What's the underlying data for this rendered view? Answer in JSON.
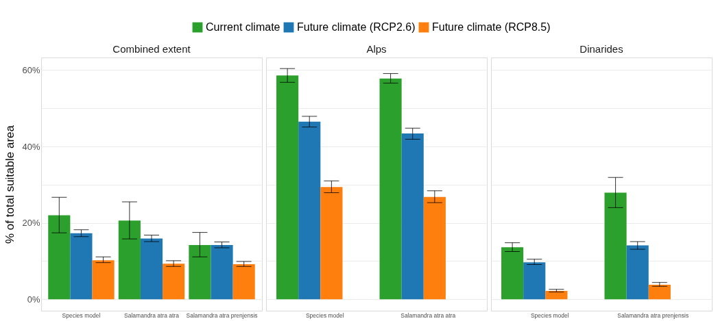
{
  "chart_data": [
    {
      "type": "bar",
      "title": "Combined extent",
      "ylabel": "% of total suitable area",
      "categories": [
        "Species model",
        "Salamandra atra atra",
        "Salamandra atra prenjensis"
      ],
      "series": [
        {
          "name": "Current climate",
          "color": "#2ca02c",
          "values": [
            22.0,
            20.6,
            14.2
          ],
          "errors": [
            [
              17.4,
              26.7
            ],
            [
              15.8,
              25.5
            ],
            [
              11.1,
              17.5
            ]
          ]
        },
        {
          "name": "Future climate (RCP2.6)",
          "color": "#1f77b4",
          "values": [
            17.3,
            15.9,
            14.2
          ],
          "errors": [
            [
              16.4,
              18.2
            ],
            [
              15.1,
              16.8
            ],
            [
              13.5,
              15.0
            ]
          ]
        },
        {
          "name": "Future climate (RCP8.5)",
          "color": "#ff7f0e",
          "values": [
            10.2,
            9.3,
            9.2
          ],
          "errors": [
            [
              9.6,
              11.1
            ],
            [
              8.6,
              10.1
            ],
            [
              8.6,
              9.9
            ]
          ]
        }
      ],
      "ylim": [
        -3,
        63.3
      ],
      "yticks": [
        {
          "value": 0,
          "label": "0%"
        },
        {
          "value": 10,
          "label": null
        },
        {
          "value": 20,
          "label": "20%"
        },
        {
          "value": 30,
          "label": null
        },
        {
          "value": 40,
          "label": "40%"
        },
        {
          "value": 50,
          "label": null
        },
        {
          "value": 60,
          "label": "60%"
        }
      ],
      "grid": "y",
      "legend": "top"
    },
    {
      "type": "bar",
      "title": "Alps",
      "categories": [
        "Species model",
        "Salamandra atra atra"
      ],
      "series": [
        {
          "name": "Current climate",
          "color": "#2ca02c",
          "values": [
            58.6,
            57.8
          ],
          "errors": [
            [
              56.8,
              60.4
            ],
            [
              56.6,
              59.1
            ]
          ]
        },
        {
          "name": "Future climate (RCP2.6)",
          "color": "#1f77b4",
          "values": [
            46.5,
            43.4
          ],
          "errors": [
            [
              45.1,
              47.9
            ],
            [
              41.9,
              44.8
            ]
          ]
        },
        {
          "name": "Future climate (RCP8.5)",
          "color": "#ff7f0e",
          "values": [
            29.4,
            26.8
          ],
          "errors": [
            [
              27.9,
              31.0
            ],
            [
              25.3,
              28.4
            ]
          ]
        }
      ],
      "ylim": [
        -3,
        63.3
      ],
      "yticks": [
        0,
        10,
        20,
        30,
        40,
        50,
        60
      ],
      "grid": "y",
      "tick_labels": "x"
    },
    {
      "type": "bar",
      "title": "Dinarides",
      "categories": [
        "Species model",
        "Salamandra atra prenjensis"
      ],
      "series": [
        {
          "name": "Current climate",
          "color": "#2ca02c",
          "values": [
            13.6,
            27.9
          ],
          "errors": [
            [
              12.5,
              14.8
            ],
            [
              24.0,
              31.9
            ]
          ]
        },
        {
          "name": "Future climate (RCP2.6)",
          "color": "#1f77b4",
          "values": [
            9.7,
            14.1
          ],
          "errors": [
            [
              9.1,
              10.5
            ],
            [
              13.1,
              15.1
            ]
          ]
        },
        {
          "name": "Future climate (RCP8.5)",
          "color": "#ff7f0e",
          "values": [
            2.2,
            3.8
          ],
          "errors": [
            [
              1.9,
              2.6
            ],
            [
              3.4,
              4.4
            ]
          ]
        }
      ],
      "ylim": [
        -3,
        63.3
      ],
      "yticks": [
        0,
        10,
        20,
        30,
        40,
        50,
        60
      ],
      "grid": "y",
      "tick_labels": "x"
    }
  ]
}
